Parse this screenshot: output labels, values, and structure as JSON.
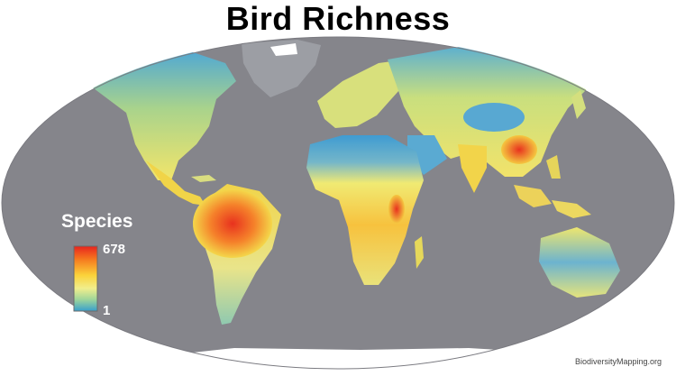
{
  "title": "Bird Richness",
  "legend": {
    "title": "Species",
    "max_label": "678",
    "min_label": "1",
    "gradient_stops": [
      "#e8231e",
      "#f5781e",
      "#fbd33a",
      "#f1ee8c",
      "#9fd69a",
      "#37a0cd"
    ]
  },
  "credit": "BiodiversityMapping.org",
  "colors": {
    "ocean": "#85858b",
    "outside": "#ffffff",
    "ice": "#ffffff",
    "low": "#3f9bd2",
    "mid": "#f0ea73",
    "high": "#e8321e"
  }
}
